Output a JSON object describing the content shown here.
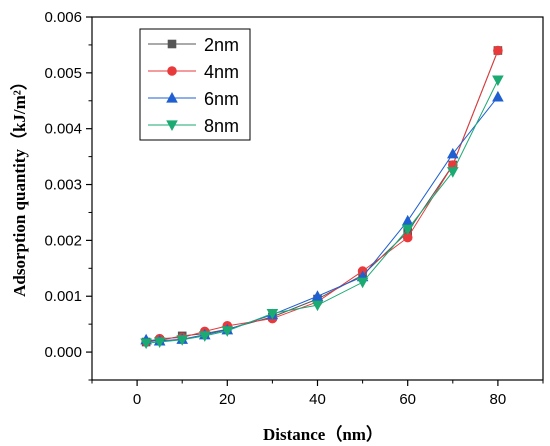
{
  "chart_data": {
    "type": "line",
    "title": "",
    "xlabel": "Distance（nm）",
    "ylabel": "Adsorption quantity（kJ/m²）",
    "xlim": [
      -10,
      90
    ],
    "ylim": [
      -0.0005,
      0.006
    ],
    "xticks": [
      0,
      20,
      40,
      60,
      80
    ],
    "xtick_labels": [
      "0",
      "20",
      "40",
      "60",
      "80"
    ],
    "yticks": [
      0,
      0.001,
      0.002,
      0.003,
      0.004,
      0.005,
      0.006
    ],
    "ytick_labels": [
      "0.000",
      "0.001",
      "0.002",
      "0.003",
      "0.004",
      "0.005",
      "0.006"
    ],
    "grid": false,
    "legend_position": "top-left",
    "x": [
      2,
      5,
      10,
      15,
      20,
      30,
      40,
      50,
      60,
      70,
      80
    ],
    "series": [
      {
        "name": "2nm",
        "marker": "square",
        "color": "#555555",
        "values": [
          0.00018,
          0.00021,
          0.00029,
          0.00033,
          0.00041,
          0.00063,
          0.00095,
          0.00138,
          0.00215,
          0.00335,
          0.0054
        ]
      },
      {
        "name": "4nm",
        "marker": "circle",
        "color": "#e8393b",
        "values": [
          0.00018,
          0.00024,
          0.00026,
          0.00037,
          0.00047,
          0.0006,
          0.0009,
          0.00145,
          0.00205,
          0.00335,
          0.0054
        ]
      },
      {
        "name": "6nm",
        "marker": "triangle-up",
        "color": "#1f5fd0",
        "values": [
          0.00022,
          0.0002,
          0.00023,
          0.00031,
          0.0004,
          0.00067,
          0.001,
          0.00135,
          0.00235,
          0.00355,
          0.00457
        ]
      },
      {
        "name": "8nm",
        "marker": "triangle-down",
        "color": "#1aaa72",
        "values": [
          0.00016,
          0.00018,
          0.00022,
          0.00029,
          0.00038,
          0.00069,
          0.00084,
          0.00125,
          0.0022,
          0.00323,
          0.00487
        ]
      }
    ]
  }
}
